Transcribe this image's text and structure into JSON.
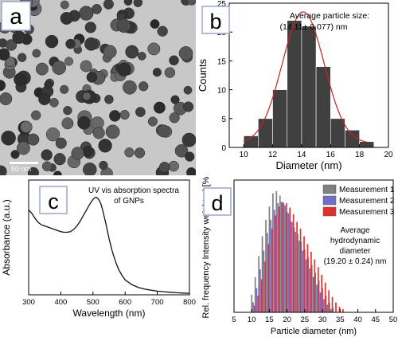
{
  "panels": {
    "a": {
      "label": "a",
      "scale_bar": "50 nm"
    },
    "b": {
      "label": "b",
      "annotation_line1": "Average particle size:",
      "annotation_line2": "(14.11± 0.077) nm"
    },
    "c": {
      "label": "c",
      "annotation_line1": "UV vis absorption spectra",
      "annotation_line2": "of GNPs"
    },
    "d": {
      "label": "d",
      "annotation_line1": "Average",
      "annotation_line2": "hydrodynamic",
      "annotation_line3": "diameter",
      "annotation_line4": "(19.20 ± 0.24) nm"
    }
  },
  "colors": {
    "bar_dark": "#404040",
    "fit_red": "#cc2222",
    "spectrum_black": "#111111",
    "m1": "#808080",
    "m2": "#6f6fc8",
    "m3": "#e03030",
    "label_box_border": "#9aa6cc",
    "tem_background": "#c8c8c8"
  },
  "chart_data": [
    {
      "panel": "b",
      "type": "bar",
      "xlabel": "Diameter (nm)",
      "ylabel": "Counts",
      "xlim": [
        9,
        20
      ],
      "ylim": [
        0,
        25
      ],
      "xticks": [
        10,
        12,
        14,
        16,
        18,
        20
      ],
      "yticks": [
        0,
        5,
        10,
        15,
        20,
        25
      ],
      "categories": [
        10.5,
        11.5,
        12.5,
        13.5,
        14.5,
        15.5,
        16.5,
        17.5,
        18.5
      ],
      "values": [
        2,
        5,
        10,
        22,
        21,
        14,
        5,
        3,
        1
      ],
      "fit": {
        "type": "gaussian",
        "amplitude": 22.8,
        "center": 14.11,
        "sigma": 1.45,
        "offset": 0.7
      }
    },
    {
      "panel": "c",
      "type": "line",
      "xlabel": "Wavelength (nm)",
      "ylabel": "Absorbance (a.u.)",
      "xlim": [
        300,
        800
      ],
      "ylim": [
        0,
        1
      ],
      "xticks": [
        300,
        400,
        500,
        600,
        700,
        800
      ],
      "x": [
        300,
        310,
        320,
        330,
        340,
        350,
        360,
        370,
        380,
        390,
        400,
        410,
        420,
        430,
        440,
        450,
        460,
        470,
        480,
        490,
        500,
        505,
        510,
        515,
        520,
        525,
        530,
        540,
        550,
        560,
        570,
        580,
        590,
        600,
        620,
        640,
        660,
        680,
        700,
        720,
        740,
        760,
        780,
        800
      ],
      "y": [
        0.74,
        0.71,
        0.665,
        0.63,
        0.61,
        0.6,
        0.59,
        0.58,
        0.57,
        0.56,
        0.55,
        0.545,
        0.545,
        0.55,
        0.57,
        0.6,
        0.64,
        0.69,
        0.74,
        0.79,
        0.83,
        0.845,
        0.85,
        0.84,
        0.82,
        0.79,
        0.74,
        0.62,
        0.49,
        0.38,
        0.29,
        0.22,
        0.17,
        0.13,
        0.09,
        0.065,
        0.05,
        0.04,
        0.032,
        0.027,
        0.022,
        0.018,
        0.015,
        0.013
      ]
    },
    {
      "panel": "d",
      "type": "bar",
      "xlabel": "Particle diameter (nm)",
      "ylabel": "Rel. frequency Intensity weighted [%]",
      "xlim": [
        5,
        50
      ],
      "xticks": [
        5,
        10,
        15,
        20,
        25,
        30,
        35,
        40,
        45,
        50
      ],
      "ylim": [
        0,
        12
      ],
      "legend_position": "top-right",
      "series": [
        {
          "name": "Measurement 1",
          "x": [
            10.0,
            11.0,
            12.0,
            13.0,
            14.0,
            15.0,
            16.0,
            17.0,
            18.0,
            19.0,
            20.0,
            21.0,
            22.0,
            23.0,
            24.0,
            25.0,
            26.0,
            27.0,
            28.0,
            29.0,
            30.0,
            31.0,
            32.0,
            33.0
          ],
          "values": [
            1.6,
            3.2,
            5.1,
            6.9,
            8.4,
            9.6,
            10.8,
            11.0,
            10.6,
            9.9,
            9.1,
            8.3,
            7.7,
            7.1,
            6.4,
            5.7,
            5.0,
            4.3,
            3.6,
            2.9,
            2.2,
            1.5,
            0.9,
            0.4
          ]
        },
        {
          "name": "Measurement 2",
          "x": [
            10.4,
            11.4,
            12.4,
            13.4,
            14.4,
            15.4,
            16.4,
            17.4,
            18.4,
            19.4,
            20.4,
            21.4,
            22.4,
            23.4,
            24.4,
            25.4,
            26.4,
            27.4,
            28.4,
            29.4,
            30.4,
            31.4,
            32.4
          ],
          "values": [
            0.9,
            2.2,
            3.9,
            5.6,
            7.2,
            8.4,
            9.3,
            9.9,
            10.0,
            9.7,
            9.0,
            8.2,
            7.3,
            6.5,
            5.6,
            4.8,
            4.0,
            3.2,
            2.5,
            1.8,
            1.2,
            0.7,
            0.3
          ]
        },
        {
          "name": "Measurement 3",
          "x": [
            10.8,
            11.8,
            12.8,
            13.8,
            14.8,
            15.8,
            16.8,
            17.8,
            18.8,
            19.8,
            20.8,
            21.8,
            22.8,
            23.8,
            24.8,
            25.8,
            26.8,
            27.8,
            28.8,
            29.8,
            30.8,
            31.8,
            32.8,
            33.8,
            34.8,
            35.8
          ],
          "values": [
            0.6,
            1.5,
            3.0,
            4.6,
            6.2,
            7.6,
            8.8,
            9.6,
            10.0,
            9.9,
            9.5,
            8.9,
            8.2,
            7.6,
            6.9,
            6.2,
            5.5,
            4.8,
            4.1,
            3.4,
            2.7,
            2.0,
            1.4,
            0.9,
            0.5,
            0.3
          ]
        }
      ]
    }
  ]
}
